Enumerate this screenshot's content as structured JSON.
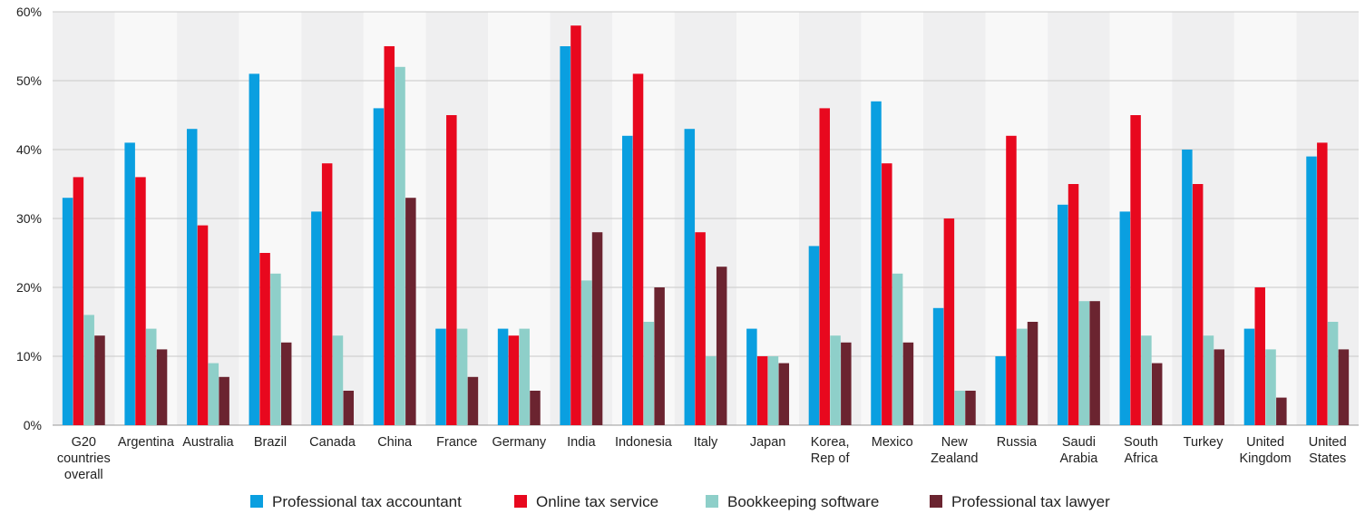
{
  "chart_data": {
    "type": "bar",
    "categories": [
      [
        "G20",
        "countries",
        "overall"
      ],
      [
        "Argentina"
      ],
      [
        "Australia"
      ],
      [
        "Brazil"
      ],
      [
        "Canada"
      ],
      [
        "China"
      ],
      [
        "France"
      ],
      [
        "Germany"
      ],
      [
        "India"
      ],
      [
        "Indonesia"
      ],
      [
        "Italy"
      ],
      [
        "Japan"
      ],
      [
        "Korea,",
        "Rep of"
      ],
      [
        "Mexico"
      ],
      [
        "New",
        "Zealand"
      ],
      [
        "Russia"
      ],
      [
        "Saudi",
        "Arabia"
      ],
      [
        "South",
        "Africa"
      ],
      [
        "Turkey"
      ],
      [
        "United",
        "Kingdom"
      ],
      [
        "United",
        "States"
      ]
    ],
    "series": [
      {
        "name": "Professional tax accountant",
        "color": "#0a9fe0",
        "values": [
          33,
          41,
          43,
          51,
          31,
          46,
          14,
          14,
          55,
          42,
          43,
          14,
          26,
          47,
          17,
          10,
          32,
          31,
          40,
          14,
          39
        ]
      },
      {
        "name": "Online tax service",
        "color": "#e8081e",
        "values": [
          36,
          36,
          29,
          25,
          38,
          55,
          45,
          13,
          58,
          51,
          28,
          10,
          46,
          38,
          30,
          42,
          35,
          45,
          35,
          20,
          41
        ]
      },
      {
        "name": "Bookkeeping software",
        "color": "#8ecfc9",
        "values": [
          16,
          14,
          9,
          22,
          13,
          52,
          14,
          14,
          21,
          15,
          10,
          10,
          13,
          22,
          5,
          14,
          18,
          13,
          13,
          11,
          15
        ]
      },
      {
        "name": "Professional tax lawyer",
        "color": "#6b2430",
        "values": [
          13,
          11,
          7,
          12,
          5,
          33,
          7,
          5,
          28,
          20,
          23,
          9,
          12,
          12,
          5,
          15,
          18,
          9,
          11,
          4,
          11
        ]
      }
    ],
    "yticks": [
      "0%",
      "10%",
      "20%",
      "30%",
      "40%",
      "50%",
      "60%"
    ],
    "ylim": [
      0,
      60
    ],
    "grid": true,
    "legend": "bottom-center",
    "xlabel": "",
    "ylabel": ""
  }
}
